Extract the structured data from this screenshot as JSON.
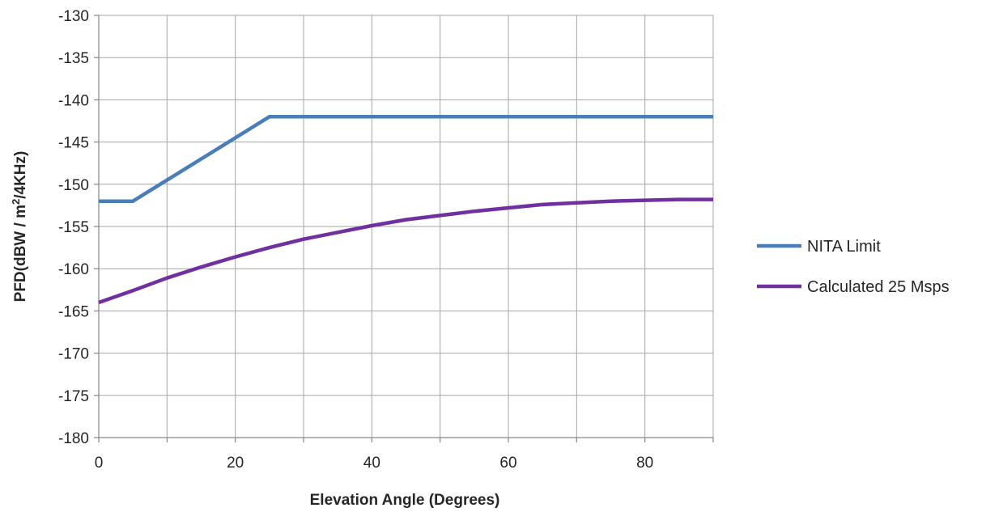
{
  "chart_data": {
    "type": "line",
    "title": "",
    "xlabel": "Elevation Angle (Degrees)",
    "ylabel": {
      "prefix": "PFD(dBW / m",
      "superscript": "2",
      "suffix": "/4KHz)"
    },
    "xlim": [
      0,
      90
    ],
    "ylim": [
      -180,
      -130
    ],
    "x_ticks": [
      0,
      20,
      40,
      60,
      80
    ],
    "y_ticks": [
      -130,
      -135,
      -140,
      -145,
      -150,
      -155,
      -160,
      -165,
      -170,
      -175,
      -180
    ],
    "x_grid": [
      0,
      10,
      20,
      30,
      40,
      50,
      60,
      70,
      80,
      90
    ],
    "grid": true,
    "legend_position": "right",
    "series": [
      {
        "name": "NITA Limit",
        "color": "#4a7ebb",
        "x": [
          0,
          5,
          25,
          90
        ],
        "y": [
          -152,
          -152,
          -142,
          -142
        ]
      },
      {
        "name": "Calculated 25 Msps",
        "color": "#7030a0",
        "x": [
          0,
          5,
          10,
          15,
          20,
          25,
          30,
          35,
          40,
          45,
          50,
          55,
          60,
          65,
          70,
          75,
          80,
          85,
          90
        ],
        "y": [
          -164,
          -162.6,
          -161.1,
          -159.8,
          -158.6,
          -157.5,
          -156.5,
          -155.7,
          -154.9,
          -154.2,
          -153.7,
          -153.2,
          -152.8,
          -152.4,
          -152.2,
          -152.0,
          -151.9,
          -151.8,
          -151.8
        ]
      }
    ]
  }
}
